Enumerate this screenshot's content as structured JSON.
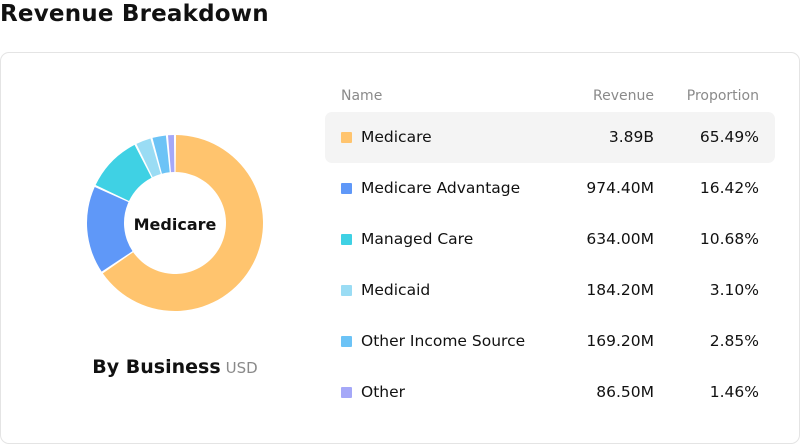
{
  "page": {
    "title": "Revenue Breakdown"
  },
  "chart_caption": {
    "main": "By Business",
    "unit": "USD"
  },
  "donut_center_label": "Medicare",
  "table": {
    "headers": {
      "name": "Name",
      "revenue": "Revenue",
      "proportion": "Proportion"
    },
    "selected_index": 0,
    "rows": [
      {
        "name": "Medicare",
        "revenue": "3.89B",
        "proportion": "65.49%",
        "color": "#ffc46e"
      },
      {
        "name": "Medicare Advantage",
        "revenue": "974.40M",
        "proportion": "16.42%",
        "color": "#5f98f8"
      },
      {
        "name": "Managed Care",
        "revenue": "634.00M",
        "proportion": "10.68%",
        "color": "#3fd1e4"
      },
      {
        "name": "Medicaid",
        "revenue": "184.20M",
        "proportion": "3.10%",
        "color": "#9adcf4"
      },
      {
        "name": "Other Income Source",
        "revenue": "169.20M",
        "proportion": "2.85%",
        "color": "#6cc3f6"
      },
      {
        "name": "Other",
        "revenue": "86.50M",
        "proportion": "1.46%",
        "color": "#a5a8f8"
      }
    ]
  },
  "chart_data": {
    "type": "pie",
    "variant": "donut",
    "title": "",
    "categories": [
      "Medicare",
      "Medicare Advantage",
      "Managed Care",
      "Medicaid",
      "Other Income Source",
      "Other"
    ],
    "values": [
      65.49,
      16.42,
      10.68,
      3.1,
      2.85,
      1.46
    ],
    "unit": "%",
    "colors": [
      "#ffc46e",
      "#5f98f8",
      "#3fd1e4",
      "#9adcf4",
      "#6cc3f6",
      "#a5a8f8"
    ],
    "highlighted": "Medicare",
    "legend": "right"
  }
}
